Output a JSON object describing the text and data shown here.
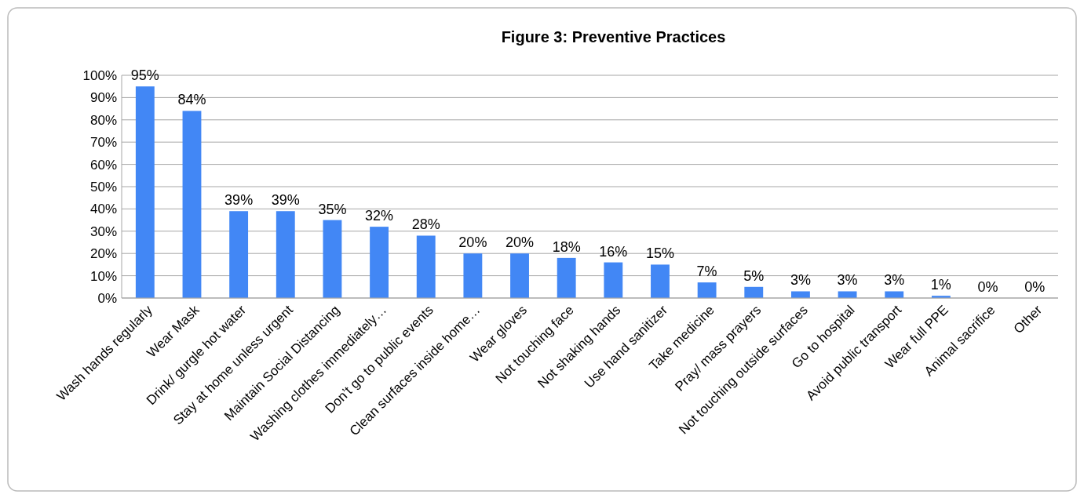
{
  "chart_data": {
    "type": "bar",
    "title": "Figure 3: Preventive Practices",
    "categories": [
      "Wash hands regularly",
      "Wear Mask",
      "Drink/ gurgle hot water",
      "Stay at home unless urgent",
      "Maintain Social Distancing",
      "Washing clothes immediately…",
      "Don’t go to public events",
      "Clean surfaces inside home…",
      "Wear gloves",
      "Not touching face",
      "Not shaking hands",
      "Use hand sanitizer",
      "Take medicine",
      "Pray/ mass prayers",
      "Not touching outside surfaces",
      "Go to hospital",
      "Avoid public transport",
      "Wear full PPE",
      "Animal sacrifice",
      "Other"
    ],
    "values": [
      95,
      84,
      39,
      39,
      35,
      32,
      28,
      20,
      20,
      18,
      16,
      15,
      7,
      5,
      3,
      3,
      3,
      1,
      0,
      0
    ],
    "value_labels": [
      "95%",
      "84%",
      "39%",
      "39%",
      "35%",
      "32%",
      "28%",
      "20%",
      "20%",
      "18%",
      "16%",
      "15%",
      "7%",
      "5%",
      "3%",
      "3%",
      "3%",
      "1%",
      "0%",
      "0%"
    ],
    "color": "#4287f5",
    "ylim": [
      0,
      100
    ],
    "yticks": [
      {
        "value": 0,
        "label": "0%"
      },
      {
        "value": 10,
        "label": "10%"
      },
      {
        "value": 20,
        "label": "20%"
      },
      {
        "value": 30,
        "label": "30%"
      },
      {
        "value": 40,
        "label": "40%"
      },
      {
        "value": 50,
        "label": "50%"
      },
      {
        "value": 60,
        "label": "60%"
      },
      {
        "value": 70,
        "label": "70%"
      },
      {
        "value": 80,
        "label": "80%"
      },
      {
        "value": 90,
        "label": "90%"
      },
      {
        "value": 100,
        "label": "100%"
      }
    ],
    "grid": "y"
  }
}
